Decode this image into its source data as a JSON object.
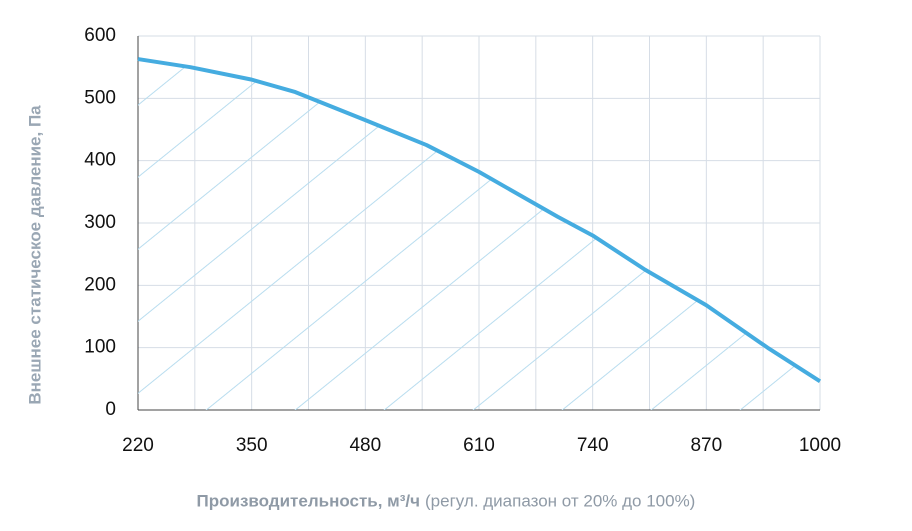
{
  "chart_data": {
    "type": "line",
    "ylabel": "Внешнее статическое давление, Па",
    "xlabel": "Производительность, м³/ч",
    "xlabel_note": "(регул. диапазон от 20% до 100%)",
    "x": [
      220,
      280,
      350,
      400,
      480,
      550,
      610,
      700,
      740,
      800,
      870,
      940,
      1000
    ],
    "series": [
      {
        "color": "#45ace0",
        "values": [
          563,
          550,
          530,
          510,
          465,
          425,
          382,
          310,
          280,
          225,
          168,
          100,
          46
        ]
      }
    ],
    "xlim": [
      220,
      1000
    ],
    "xticks": [
      220,
      350,
      480,
      610,
      740,
      870,
      1000
    ],
    "x_gridlines": [
      220,
      285,
      350,
      415,
      480,
      545,
      610,
      675,
      740,
      805,
      870,
      935,
      1000
    ],
    "ylim": [
      0,
      600
    ],
    "yticks": [
      0,
      100,
      200,
      300,
      400,
      500,
      600
    ],
    "grid": true,
    "hatch_fill": true
  }
}
